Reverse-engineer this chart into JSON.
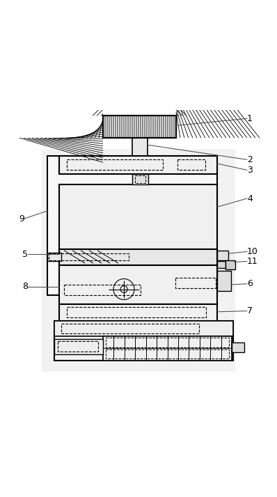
{
  "bg_color": "#ffffff",
  "line_color": "#000000",
  "dashed_color": "#000000",
  "label_color": "#000000",
  "fig_width": 3.98,
  "fig_height": 7.14,
  "dpi": 100
}
